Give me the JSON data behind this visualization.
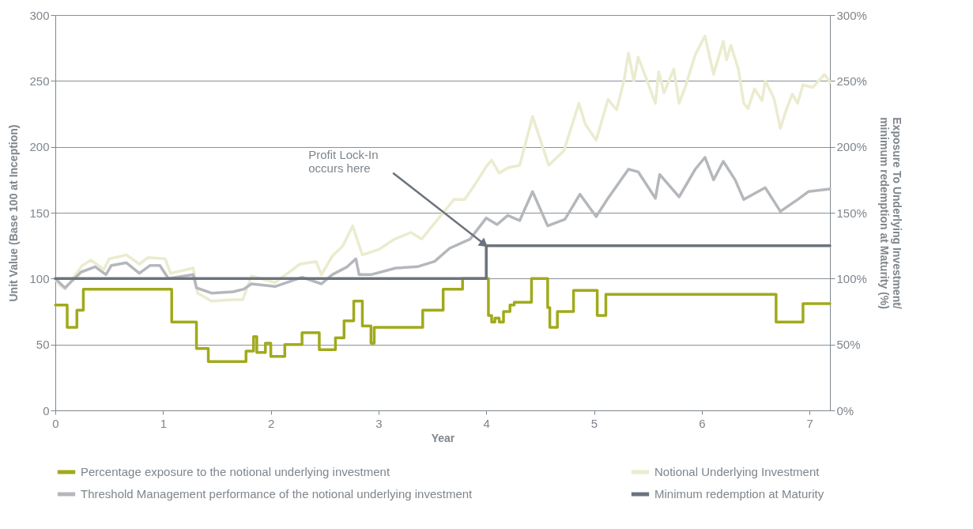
{
  "chart_data": {
    "type": "line",
    "xlabel": "Year",
    "ylabel": "Unit Value (Base 100 at Inception)",
    "y2label": "Exposure To Underlying Investment/\nminimum redemption at Maturity (%)",
    "xlim": [
      0,
      7.19
    ],
    "xticks": [
      0,
      1,
      2,
      3,
      4,
      5,
      6,
      7
    ],
    "ylim": [
      0,
      300
    ],
    "yticks": [
      0,
      50,
      100,
      150,
      200,
      250,
      300
    ],
    "y2lim": [
      0,
      300
    ],
    "y2ticks": [
      {
        "value": 0,
        "label": "0%"
      },
      {
        "value": 50,
        "label": "50%"
      },
      {
        "value": 100,
        "label": "100%"
      },
      {
        "value": 150,
        "label": "150%"
      },
      {
        "value": 200,
        "label": "200%"
      },
      {
        "value": 250,
        "label": "250%"
      },
      {
        "value": 300,
        "label": "300%"
      }
    ],
    "grid": "y",
    "legend": "bottom",
    "annotations": [
      {
        "text": "Profit Lock-In\noccurs here",
        "x": 4,
        "y": 125
      }
    ],
    "series": [
      {
        "name": "Percentage exposure to the notional underlying investment",
        "color": "#a0aa1c",
        "type": "step",
        "axis": "y2",
        "x": [
          0,
          0.11,
          0.2,
          0.26,
          1.08,
          1.31,
          1.42,
          1.77,
          1.84,
          1.87,
          1.95,
          2.0,
          2.13,
          2.29,
          2.45,
          2.6,
          2.68,
          2.77,
          2.85,
          2.93,
          2.96,
          3.41,
          3.6,
          3.78,
          4.02,
          4.05,
          4.08,
          4.12,
          4.16,
          4.22,
          4.26,
          4.42,
          4.57,
          4.59,
          4.66,
          4.81,
          5.03,
          5.11,
          6.69,
          6.94,
          7.19
        ],
        "values": [
          80,
          63,
          76,
          92,
          67,
          47,
          37,
          45,
          56,
          44,
          51,
          41,
          50,
          59,
          46,
          55,
          68,
          83,
          64,
          51,
          63,
          76,
          92,
          100,
          72,
          67,
          70,
          67,
          75,
          80,
          82,
          100,
          78,
          63,
          75,
          91,
          72,
          88,
          67,
          81,
          81
        ]
      },
      {
        "name": "Notional Underlying Investment",
        "color": "#ebebcf",
        "type": "line",
        "x": [
          0,
          0.04,
          0.09,
          0.25,
          0.33,
          0.45,
          0.5,
          0.66,
          0.78,
          0.86,
          1.02,
          1.07,
          1.28,
          1.32,
          1.45,
          1.65,
          1.74,
          1.82,
          2.04,
          2.27,
          2.42,
          2.47,
          2.57,
          2.67,
          2.76,
          2.85,
          3.0,
          3.15,
          3.3,
          3.4,
          3.55,
          3.7,
          3.8,
          3.9,
          4.0,
          4.05,
          4.12,
          4.2,
          4.31,
          4.43,
          4.58,
          4.72,
          4.86,
          4.92,
          5.02,
          5.13,
          5.21,
          5.28,
          5.32,
          5.37,
          5.41,
          5.48,
          5.57,
          5.6,
          5.65,
          5.74,
          5.79,
          5.85,
          5.94,
          6.03,
          6.11,
          6.2,
          6.23,
          6.27,
          6.34,
          6.39,
          6.43,
          6.49,
          6.56,
          6.59,
          6.67,
          6.73,
          6.78,
          6.84,
          6.89,
          6.94,
          7.03,
          7.14,
          7.19
        ],
        "values": [
          100,
          95,
          92,
          110,
          114,
          107,
          115,
          118,
          111,
          116,
          115,
          104,
          108,
          89,
          83,
          84,
          84,
          102,
          97,
          111,
          113,
          103,
          117,
          125,
          140,
          118,
          122,
          130,
          135,
          130,
          145,
          160,
          160,
          172,
          185,
          190,
          180,
          184,
          186,
          223,
          186,
          197,
          233,
          217,
          205,
          236,
          228,
          251,
          271,
          250,
          268,
          253,
          233,
          257,
          241,
          259,
          233,
          246,
          270,
          284,
          255,
          280,
          266,
          277,
          259,
          233,
          229,
          244,
          235,
          250,
          237,
          214,
          227,
          240,
          233,
          247,
          245,
          255,
          249
        ]
      },
      {
        "name": "Threshold Management performance of the notional underlying investment",
        "color": "#b4b8bc",
        "type": "line",
        "x": [
          0,
          0.05,
          0.09,
          0.24,
          0.37,
          0.47,
          0.52,
          0.66,
          0.78,
          0.88,
          0.97,
          1.05,
          1.28,
          1.31,
          1.45,
          1.65,
          1.75,
          1.82,
          2.04,
          2.29,
          2.47,
          2.57,
          2.71,
          2.79,
          2.82,
          2.93,
          3.16,
          3.36,
          3.52,
          3.66,
          3.85,
          4.0,
          4.1,
          4.2,
          4.31,
          4.43,
          4.57,
          4.73,
          4.87,
          5.02,
          5.13,
          5.32,
          5.41,
          5.57,
          5.61,
          5.79,
          5.94,
          6.03,
          6.11,
          6.2,
          6.31,
          6.39,
          6.59,
          6.73,
          6.89,
          6.99,
          7.19
        ],
        "values": [
          100,
          96,
          93,
          105,
          109,
          103,
          110,
          112,
          104,
          110,
          110,
          100,
          103,
          93,
          89,
          90,
          92,
          96,
          94,
          101,
          96,
          103,
          109,
          115,
          103,
          103,
          108,
          109,
          113,
          123,
          130,
          146,
          141,
          148,
          144,
          166,
          140,
          145,
          164,
          147,
          161,
          183,
          181,
          161,
          179,
          162,
          183,
          192,
          175,
          189,
          175,
          160,
          169,
          151,
          160,
          166,
          168
        ]
      },
      {
        "name": "Minimum redemption at Maturity",
        "color": "#6b737c",
        "type": "step",
        "x": [
          0,
          4.0,
          7.19
        ],
        "values": [
          100,
          125,
          125
        ]
      }
    ]
  }
}
